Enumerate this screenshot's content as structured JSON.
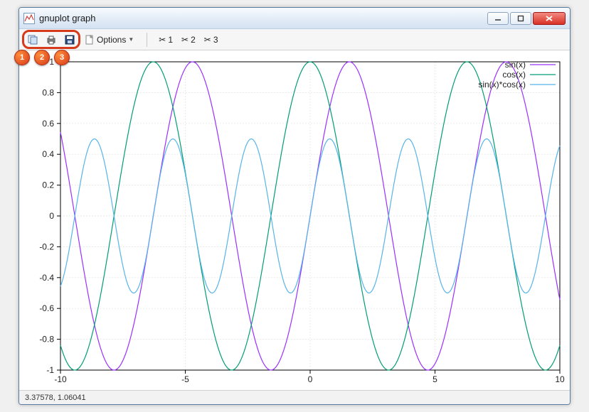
{
  "window": {
    "title": "gnuplot graph"
  },
  "toolbar": {
    "options_label": "Options",
    "scissor_labels": [
      "1",
      "2",
      "3"
    ]
  },
  "badges": [
    "1",
    "2",
    "3"
  ],
  "statusbar": {
    "coords": "3.37578, 1.06041"
  },
  "chart": {
    "type": "line",
    "background_color": "#ffffff",
    "grid_color": "#d9d9d9",
    "axis_color": "#000000",
    "text_color": "#222222",
    "label_fontsize": 12,
    "xlim": [
      -10,
      10
    ],
    "ylim": [
      -1,
      1
    ],
    "xticks": [
      -10,
      -5,
      0,
      5,
      10
    ],
    "yticks": [
      -1,
      -0.8,
      -0.6,
      -0.4,
      -0.2,
      0,
      0.2,
      0.4,
      0.6,
      0.8,
      1
    ],
    "series": [
      {
        "name": "sin(x)",
        "func": "sin",
        "color": "#9b30ff",
        "line_width": 1.2
      },
      {
        "name": "cos(x)",
        "func": "cos",
        "color": "#009e73",
        "line_width": 1.2
      },
      {
        "name": "sin(x)*cos(x)",
        "func": "sincos",
        "color": "#56b4e9",
        "line_width": 1.2
      }
    ],
    "legend_position": "top-right"
  }
}
